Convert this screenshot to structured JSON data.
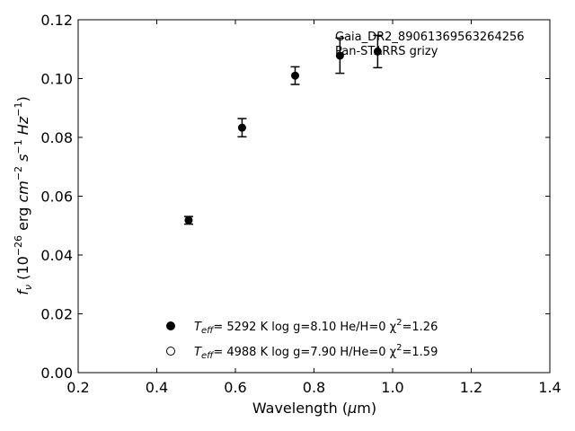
{
  "chart_data": {
    "type": "scatter",
    "xlabel": "Wavelength (μm)",
    "ylabel": "f_ν (10^-26 erg cm^-2 s^-1 Hz^-1)",
    "xlim": [
      0.2,
      1.4
    ],
    "ylim": [
      0.0,
      0.12
    ],
    "xticks": [
      "0.2",
      "0.4",
      "0.6",
      "0.8",
      "1.0",
      "1.2",
      "1.4"
    ],
    "yticks": [
      "0.00",
      "0.02",
      "0.04",
      "0.06",
      "0.08",
      "0.10",
      "0.12"
    ],
    "annotation": [
      "Gaia_DR2_890613695632642​56",
      "Pan-STARRS grizy"
    ],
    "series": [
      {
        "marker": "filled-circle",
        "points": [
          {
            "x": 0.481,
            "y": 0.0518,
            "err": 0.0013
          },
          {
            "x": 0.617,
            "y": 0.0833,
            "err": 0.0031
          },
          {
            "x": 0.752,
            "y": 0.101,
            "err": 0.003
          },
          {
            "x": 0.866,
            "y": 0.1078,
            "err": 0.006
          },
          {
            "x": 0.962,
            "y": 0.1092,
            "err": 0.0055
          }
        ]
      }
    ],
    "legend": [
      {
        "marker": "filled-circle",
        "param": "eff",
        "prefix": "T",
        "text": "=  5292 K  log g=8.10  He/H=0  χ",
        "sup": "2",
        "tail": "=1.26"
      },
      {
        "marker": "open-circle",
        "param": "eff",
        "prefix": "T",
        "text": "=  4988 K  log g=7.90  H/He=0  χ",
        "sup": "2",
        "tail": "=1.59"
      }
    ],
    "grid": false,
    "legend_position": "lower-center"
  }
}
